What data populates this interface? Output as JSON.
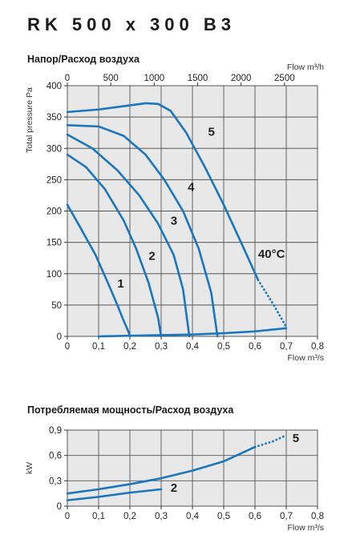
{
  "header": {
    "title": "RK 500 x 300 B3"
  },
  "chart_data": [
    {
      "type": "line",
      "title": "Напор/Расход воздуха",
      "ylabel": "Total pressure Pa",
      "xlabel": "Flow m³/s",
      "x2label": "Flow m³/h",
      "xlim": [
        0,
        0.8
      ],
      "ylim": [
        0,
        400
      ],
      "x_ticks": [
        "0",
        "0,1",
        "0,2",
        "0,3",
        "0,4",
        "0,5",
        "0,6",
        "0,7",
        "0,8"
      ],
      "y_ticks": [
        "0",
        "50",
        "100",
        "150",
        "200",
        "250",
        "300",
        "350",
        "400"
      ],
      "x2_ticks": [
        "0",
        "500",
        "1000",
        "1500",
        "2000",
        "2500"
      ],
      "x2_per_x": 3600,
      "grid": true,
      "line_color": "#1b76bd",
      "panel_color": "#e8e8e8",
      "series": [
        {
          "name": "1",
          "x": [
            0,
            0.04,
            0.09,
            0.13,
            0.16,
            0.18,
            0.195,
            0.2
          ],
          "y": [
            210,
            175,
            130,
            85,
            50,
            25,
            8,
            0
          ],
          "label_at": [
            0.16,
            78
          ]
        },
        {
          "name": "2",
          "x": [
            0,
            0.06,
            0.12,
            0.18,
            0.22,
            0.26,
            0.29,
            0.3
          ],
          "y": [
            290,
            270,
            235,
            185,
            140,
            85,
            30,
            0
          ],
          "label_at": [
            0.26,
            122
          ]
        },
        {
          "name": "3",
          "x": [
            0,
            0.08,
            0.16,
            0.23,
            0.29,
            0.34,
            0.37,
            0.39
          ],
          "y": [
            322,
            300,
            265,
            225,
            180,
            130,
            75,
            0
          ],
          "label_at": [
            0.33,
            178
          ]
        },
        {
          "name": "4",
          "x": [
            0,
            0.1,
            0.18,
            0.25,
            0.31,
            0.37,
            0.42,
            0.46,
            0.48
          ],
          "y": [
            337,
            335,
            320,
            290,
            250,
            200,
            140,
            70,
            0
          ],
          "label_at": [
            0.385,
            232
          ]
        },
        {
          "name": "5",
          "x": [
            0,
            0.1,
            0.19,
            0.25,
            0.29,
            0.33,
            0.38,
            0.44,
            0.5,
            0.56,
            0.61
          ],
          "y": [
            358,
            362,
            368,
            372,
            371,
            360,
            325,
            270,
            210,
            145,
            90
          ],
          "label_at": [
            0.45,
            320
          ]
        },
        {
          "name": "40°C",
          "style": "dotted",
          "x": [
            0.61,
            0.66,
            0.7
          ],
          "y": [
            90,
            50,
            15
          ],
          "label_at": [
            0.61,
            125
          ]
        },
        {
          "name": "",
          "x": [
            0.1,
            0.2,
            0.3,
            0.4,
            0.5,
            0.6,
            0.7
          ],
          "y": [
            0,
            1,
            2,
            3,
            5,
            8,
            13
          ]
        }
      ]
    },
    {
      "type": "line",
      "title": "Потребляемая мощность/Расход воздуха",
      "ylabel": "kW",
      "xlabel": "Flow m³/s",
      "xlim": [
        0,
        0.8
      ],
      "ylim": [
        0,
        0.9
      ],
      "x_ticks": [
        "0",
        "0,1",
        "0,2",
        "0,3",
        "0,4",
        "0,5",
        "0,6",
        "0,7",
        "0,8"
      ],
      "y_ticks": [
        "0",
        "0,3",
        "0,6",
        "0,9"
      ],
      "grid": true,
      "line_color": "#1b76bd",
      "panel_color": "#e8e8e8",
      "series": [
        {
          "name": "5",
          "x": [
            0,
            0.1,
            0.2,
            0.3,
            0.4,
            0.5,
            0.6
          ],
          "y": [
            0.15,
            0.2,
            0.26,
            0.33,
            0.42,
            0.53,
            0.7
          ],
          "label_at": [
            0.72,
            0.76
          ]
        },
        {
          "name": "",
          "style": "dotted",
          "x": [
            0.6,
            0.66,
            0.7
          ],
          "y": [
            0.7,
            0.77,
            0.84
          ]
        },
        {
          "name": "2",
          "x": [
            0,
            0.1,
            0.2,
            0.3
          ],
          "y": [
            0.07,
            0.11,
            0.16,
            0.2
          ],
          "label_at": [
            0.33,
            0.17
          ]
        }
      ]
    }
  ]
}
